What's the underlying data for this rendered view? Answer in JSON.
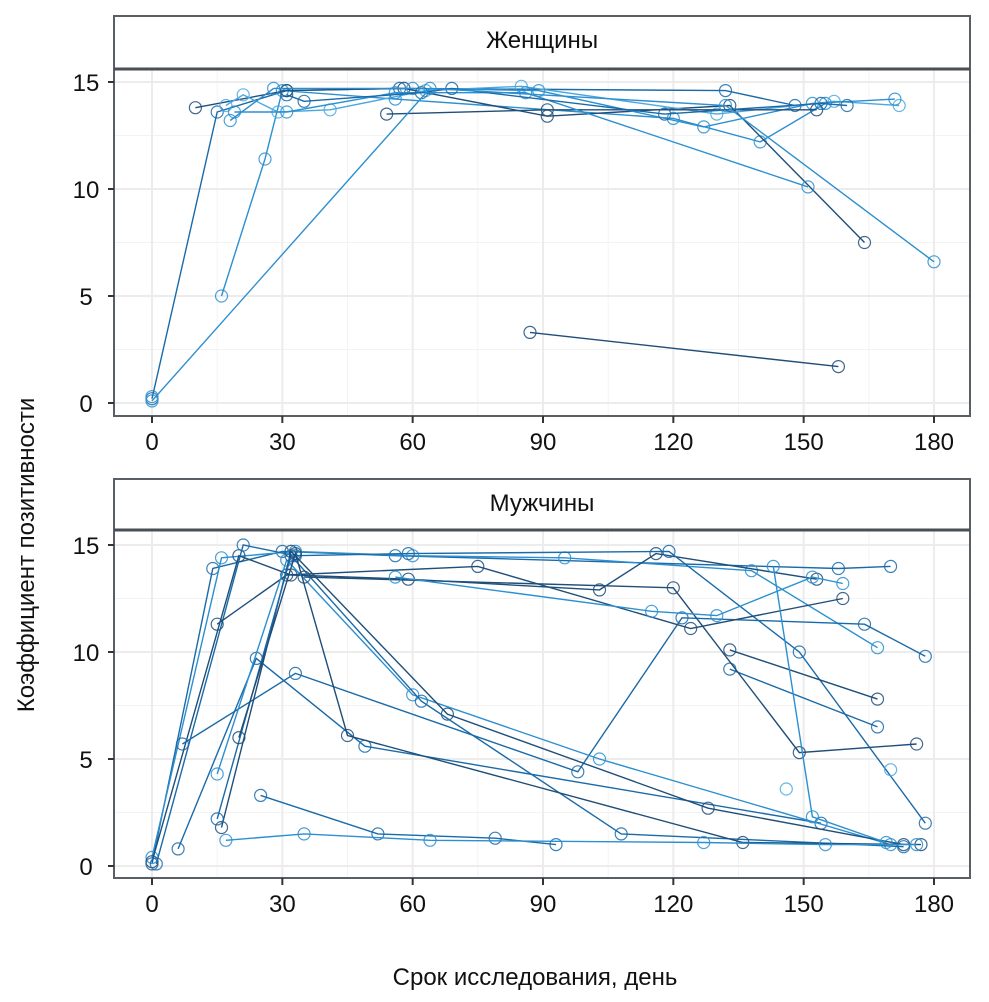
{
  "chart_data": {
    "type": "line",
    "xlabel": "Срок исследования, день",
    "ylabel": "Коэффициент позитивности",
    "x_ticks": [
      0,
      30,
      60,
      90,
      120,
      150,
      180
    ],
    "y_ticks": [
      0,
      5,
      10,
      15
    ],
    "xlim": [
      -9,
      188
    ],
    "ylim": [
      -0.4,
      15.6
    ],
    "grid": true,
    "marker": "open-circle",
    "palette": [
      "#1f4e79",
      "#1a6aa8",
      "#2b8fd0",
      "#4aa8e0"
    ],
    "panels": [
      {
        "title": "Женщины",
        "series": [
          {
            "color": "#1a6aa8",
            "points": [
              [
                0,
                0.2
              ],
              [
                15,
                13.6
              ],
              [
                31,
                14.6
              ],
              [
                57,
                14.7
              ],
              [
                132,
                14.6
              ],
              [
                148,
                13.9
              ]
            ]
          },
          {
            "color": "#2b8fd0",
            "points": [
              [
                16,
                5.0
              ],
              [
                26,
                11.4
              ],
              [
                30,
                14.6
              ],
              [
                56,
                14.2
              ],
              [
                120,
                13.3
              ],
              [
                140,
                12.2
              ],
              [
                155,
                14.0
              ]
            ]
          },
          {
            "color": "#1f4e79",
            "points": [
              [
                10,
                13.8
              ],
              [
                31,
                14.6
              ],
              [
                58,
                14.7
              ],
              [
                91,
                13.4
              ],
              [
                133,
                13.9
              ],
              [
                164,
                7.5
              ]
            ]
          },
          {
            "color": "#4aa8e0",
            "points": [
              [
                17,
                13.9
              ],
              [
                21,
                14.4
              ],
              [
                29,
                13.6
              ],
              [
                41,
                13.7
              ],
              [
                63,
                14.6
              ],
              [
                85,
                14.8
              ],
              [
                130,
                13.5
              ],
              [
                157,
                14.1
              ],
              [
                172,
                13.9
              ]
            ]
          },
          {
            "color": "#2b8fd0",
            "points": [
              [
                18,
                13.2
              ],
              [
                28,
                14.7
              ],
              [
                60,
                14.7
              ],
              [
                89,
                14.6
              ],
              [
                127,
                12.9
              ],
              [
                152,
                14.0
              ],
              [
                171,
                14.2
              ]
            ]
          },
          {
            "color": "#1f4e79",
            "points": [
              [
                54,
                13.5
              ],
              [
                91,
                13.7
              ],
              [
                153,
                13.7
              ]
            ]
          },
          {
            "color": "#2b8fd0",
            "points": [
              [
                19,
                13.6
              ],
              [
                31,
                13.6
              ],
              [
                56,
                14.5
              ],
              [
                86,
                14.5
              ],
              [
                151,
                10.1
              ]
            ]
          },
          {
            "color": "#1a6aa8",
            "points": [
              [
                31,
                14.4
              ],
              [
                35,
                14.1
              ],
              [
                62,
                14.5
              ],
              [
                69,
                14.7
              ],
              [
                118,
                13.5
              ],
              [
                154,
                14.0
              ],
              [
                160,
                13.9
              ]
            ]
          },
          {
            "color": "#2b8fd0",
            "points": [
              [
                0,
                0.1
              ],
              [
                64,
                14.7
              ],
              [
                132,
                13.9
              ],
              [
                180,
                6.6
              ]
            ]
          },
          {
            "color": "#1f4e79",
            "points": [
              [
                87,
                3.3
              ],
              [
                158,
                1.7
              ]
            ]
          },
          {
            "color": "#2b8fd0",
            "points": [
              [
                0,
                0.3
              ]
            ]
          }
        ]
      },
      {
        "title": "Мужчины",
        "series": [
          {
            "color": "#1a6aa8",
            "points": [
              [
                0,
                0.1
              ],
              [
                14,
                13.9
              ],
              [
                30,
                14.7
              ],
              [
                56,
                14.5
              ],
              [
                158,
                13.9
              ],
              [
                170,
                14.0
              ]
            ]
          },
          {
            "color": "#2b8fd0",
            "points": [
              [
                0,
                0.4
              ],
              [
                16,
                14.4
              ],
              [
                33,
                14.7
              ],
              [
                60,
                14.5
              ],
              [
                95,
                14.4
              ],
              [
                138,
                13.8
              ],
              [
                167,
                10.2
              ]
            ]
          },
          {
            "color": "#1f4e79",
            "points": [
              [
                0,
                0.2
              ],
              [
                20,
                14.5
              ],
              [
                32,
                13.6
              ],
              [
                59,
                13.4
              ],
              [
                103,
                12.9
              ],
              [
                116,
                14.6
              ],
              [
                153,
                13.4
              ]
            ]
          },
          {
            "color": "#1a6aa8",
            "points": [
              [
                1,
                0.1
              ],
              [
                21,
                15.0
              ],
              [
                33,
                14.5
              ],
              [
                59,
                14.6
              ],
              [
                119,
                14.7
              ],
              [
                149,
                10.0
              ],
              [
                178,
                2.0
              ]
            ]
          },
          {
            "color": "#1a6aa8",
            "points": [
              [
                7,
                5.7
              ],
              [
                33,
                9.0
              ],
              [
                98,
                4.4
              ],
              [
                122,
                11.6
              ],
              [
                164,
                11.3
              ],
              [
                178,
                9.8
              ]
            ]
          },
          {
            "color": "#1f4e79",
            "points": [
              [
                15,
                11.3
              ],
              [
                31,
                13.6
              ],
              [
                75,
                14.0
              ],
              [
                124,
                11.1
              ],
              [
                159,
                12.5
              ]
            ]
          },
          {
            "color": "#1a6aa8",
            "points": [
              [
                6,
                0.8
              ],
              [
                24,
                9.7
              ],
              [
                49,
                5.6
              ],
              [
                154,
                2.0
              ]
            ]
          },
          {
            "color": "#2b8fd0",
            "points": [
              [
                15,
                4.3
              ],
              [
                31,
                14.3
              ],
              [
                60,
                8.0
              ],
              [
                103,
                5.0
              ],
              [
                170,
                1.0
              ]
            ]
          },
          {
            "color": "#1f4e79",
            "points": [
              [
                16,
                1.8
              ],
              [
                32,
                14.7
              ],
              [
                68,
                7.1
              ],
              [
                128,
                2.7
              ],
              [
                173,
                1.0
              ]
            ]
          },
          {
            "color": "#1a6aa8",
            "points": [
              [
                15,
                2.2
              ],
              [
                32,
                14.5
              ],
              [
                62,
                7.7
              ],
              [
                108,
                1.5
              ],
              [
                173,
                0.9
              ]
            ]
          },
          {
            "color": "#1f4e79",
            "points": [
              [
                20,
                6.0
              ],
              [
                33,
                14.6
              ],
              [
                45,
                6.1
              ],
              [
                136,
                1.1
              ],
              [
                177,
                1.0
              ]
            ]
          },
          {
            "color": "#1a6aa8",
            "points": [
              [
                25,
                3.3
              ],
              [
                52,
                1.5
              ],
              [
                79,
                1.3
              ],
              [
                93,
                1.0
              ]
            ]
          },
          {
            "color": "#2b8fd0",
            "points": [
              [
                17,
                1.2
              ],
              [
                35,
                1.5
              ],
              [
                64,
                1.2
              ],
              [
                127,
                1.1
              ],
              [
                155,
                1.0
              ],
              [
                176,
                1.0
              ]
            ]
          },
          {
            "color": "#1f4e79",
            "points": [
              [
                133,
                10.1
              ],
              [
                167,
                7.8
              ]
            ]
          },
          {
            "color": "#1a6aa8",
            "points": [
              [
                133,
                9.2
              ],
              [
                167,
                6.5
              ]
            ]
          },
          {
            "color": "#1f4e79",
            "points": [
              [
                35,
                13.5
              ],
              [
                120,
                13.0
              ],
              [
                149,
                5.3
              ],
              [
                176,
                5.7
              ]
            ]
          },
          {
            "color": "#2b8fd0",
            "points": [
              [
                56,
                13.5
              ],
              [
                115,
                11.9
              ],
              [
                130,
                11.7
              ],
              [
                152,
                13.5
              ],
              [
                159,
                13.2
              ]
            ]
          },
          {
            "color": "#4aa8e0",
            "points": [
              [
                146,
                3.6
              ]
            ]
          },
          {
            "color": "#4aa8e0",
            "points": [
              [
                170,
                4.5
              ]
            ]
          },
          {
            "color": "#2b8fd0",
            "points": [
              [
                143,
                14.0
              ],
              [
                152,
                2.3
              ],
              [
                169,
                1.1
              ]
            ]
          }
        ]
      }
    ]
  }
}
